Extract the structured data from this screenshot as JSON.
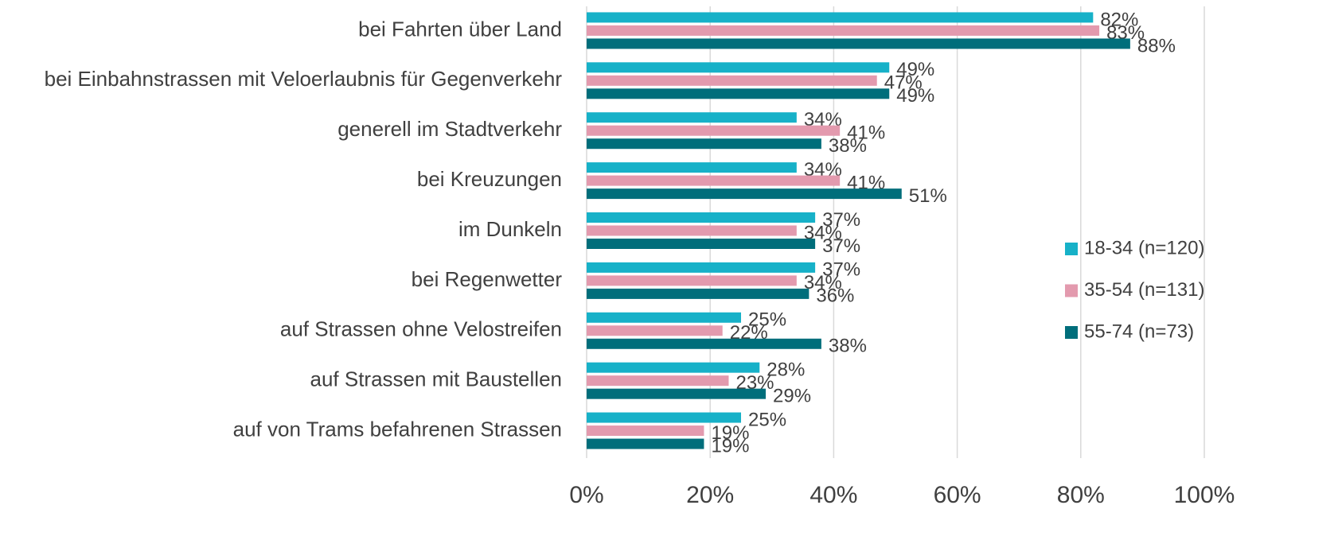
{
  "chart_data": {
    "type": "hbar",
    "categories": [
      "bei Fahrten über Land",
      "bei Einbahnstrassen mit Veloerlaubnis für Gegenverkehr",
      "generell im Stadtverkehr",
      "bei Kreuzungen",
      "im Dunkeln",
      "bei Regenwetter",
      "auf Strassen ohne Velostreifen",
      "auf Strassen mit Baustellen",
      "auf von Trams befahrenen Strassen"
    ],
    "series": [
      {
        "name": "18-34 (n=120)",
        "color": "#17b1c8",
        "values": [
          82,
          49,
          34,
          34,
          37,
          37,
          25,
          28,
          25
        ],
        "value_labels": [
          "82%",
          "49%",
          "34%",
          "34%",
          "37%",
          "37%",
          "25%",
          "28%",
          "25%"
        ]
      },
      {
        "name": "35-54 (n=131)",
        "color": "#e39aae",
        "values": [
          83,
          47,
          41,
          41,
          34,
          34,
          22,
          23,
          19
        ],
        "value_labels": [
          "83%",
          "47%",
          "41%",
          "41%",
          "34%",
          "34%",
          "22%",
          "23%",
          "19%"
        ]
      },
      {
        "name": "55-74 (n=73)",
        "color": "#006e7b",
        "values": [
          88,
          49,
          38,
          51,
          37,
          36,
          38,
          29,
          19
        ],
        "value_labels": [
          "88%",
          "49%",
          "38%",
          "51%",
          "37%",
          "36%",
          "38%",
          "29%",
          "19%"
        ]
      }
    ],
    "xlim": [
      0,
      100
    ],
    "xticks": [
      {
        "value": 0,
        "label": "0%"
      },
      {
        "value": 20,
        "label": "20%"
      },
      {
        "value": 40,
        "label": "40%"
      },
      {
        "value": 60,
        "label": "60%"
      },
      {
        "value": 80,
        "label": "80%"
      },
      {
        "value": 100,
        "label": "100%"
      }
    ],
    "grid": true,
    "legend": "right"
  }
}
